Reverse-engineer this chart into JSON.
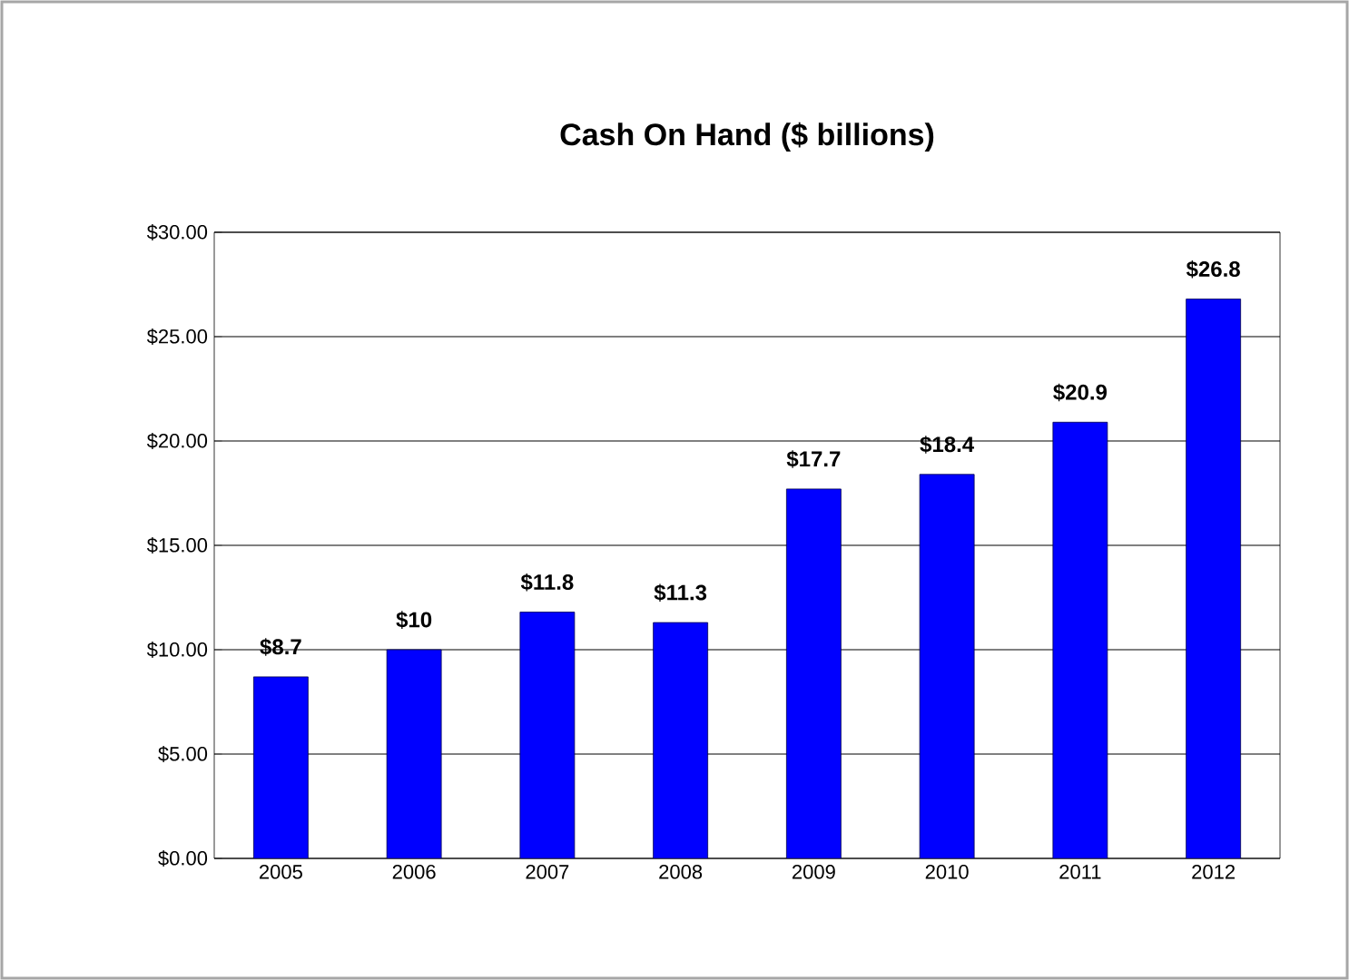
{
  "chart_data": {
    "type": "bar",
    "title": "Cash On Hand ($ billions)",
    "categories": [
      "2005",
      "2006",
      "2007",
      "2008",
      "2009",
      "2010",
      "2011",
      "2012"
    ],
    "values": [
      8.7,
      10,
      11.8,
      11.3,
      17.7,
      18.4,
      20.9,
      26.8
    ],
    "value_labels": [
      "$8.7",
      "$10",
      "$11.8",
      "$11.3",
      "$17.7",
      "$18.4",
      "$20.9",
      "$26.8"
    ],
    "color": "#0000ff",
    "ylim": [
      0,
      30
    ],
    "yticks": [
      {
        "value": 0,
        "label": "$0.00"
      },
      {
        "value": 5,
        "label": "$5.00"
      },
      {
        "value": 10,
        "label": "$10.00"
      },
      {
        "value": 15,
        "label": "$15.00"
      },
      {
        "value": 20,
        "label": "$20.00"
      },
      {
        "value": 25,
        "label": "$25.00"
      },
      {
        "value": 30,
        "label": "$30.00"
      }
    ],
    "grid": "y"
  }
}
